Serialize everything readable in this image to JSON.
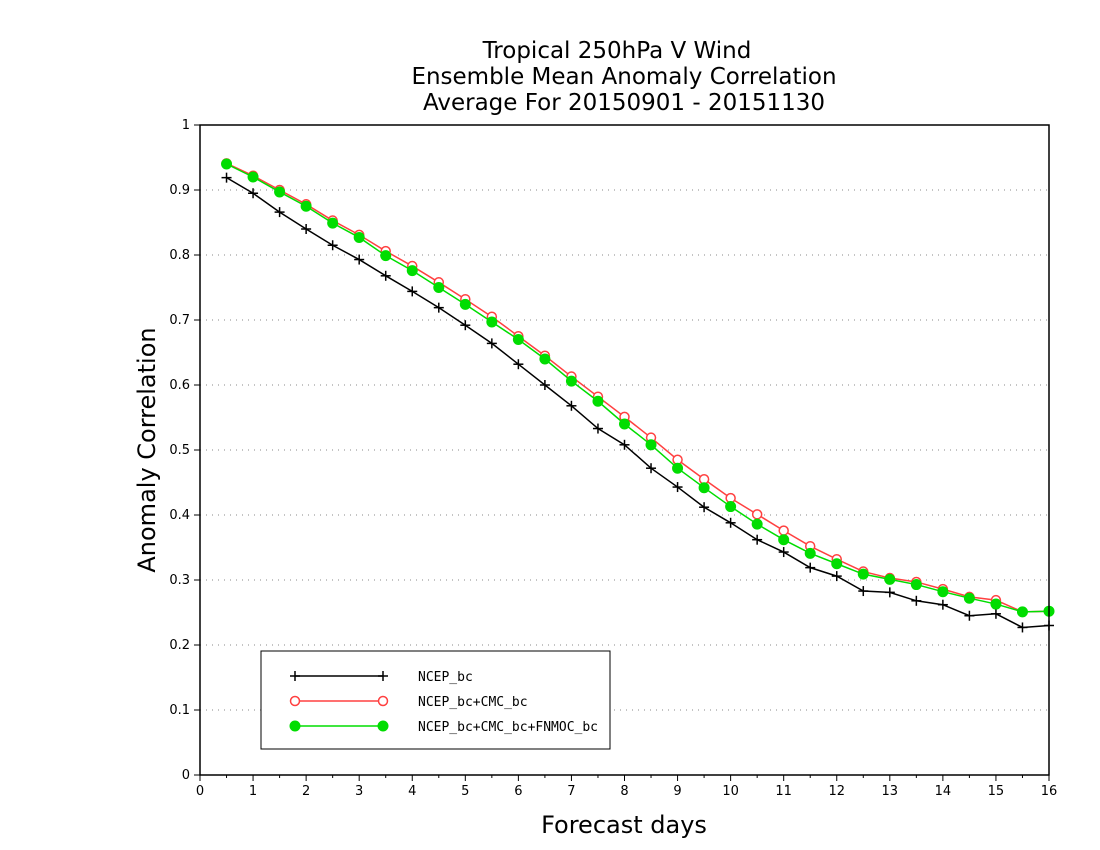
{
  "chart_data": {
    "type": "line",
    "title": [
      "Tropical 250hPa V Wind",
      "Ensemble Mean Anomaly Correlation",
      "Average For 20150901 - 20151130"
    ],
    "xlabel": "Forecast days",
    "ylabel": "Anomaly Correlation",
    "xlim": [
      0,
      16
    ],
    "ylim": [
      0,
      1
    ],
    "xticks": [
      "0",
      "1",
      "2",
      "3",
      "4",
      "5",
      "6",
      "7",
      "8",
      "9",
      "10",
      "11",
      "12",
      "13",
      "14",
      "15",
      "16"
    ],
    "yticks": [
      "0",
      "0.1",
      "0.2",
      "0.3",
      "0.4",
      "0.5",
      "0.6",
      "0.7",
      "0.8",
      "0.9",
      "1"
    ],
    "grid": "horizontal dotted",
    "legend_position": "bottom-left",
    "x": [
      0.5,
      1,
      1.5,
      2,
      2.5,
      3,
      3.5,
      4,
      4.5,
      5,
      5.5,
      6,
      6.5,
      7,
      7.5,
      8,
      8.5,
      9,
      9.5,
      10,
      10.5,
      11,
      11.5,
      12,
      12.5,
      13,
      13.5,
      14,
      14.5,
      15,
      15.5,
      16
    ],
    "series": [
      {
        "name": "NCEP_bc",
        "color": "#000000",
        "marker": "plus",
        "values": [
          0.919,
          0.895,
          0.866,
          0.84,
          0.815,
          0.793,
          0.768,
          0.744,
          0.719,
          0.692,
          0.664,
          0.632,
          0.6,
          0.568,
          0.533,
          0.508,
          0.472,
          0.443,
          0.412,
          0.388,
          0.362,
          0.343,
          0.319,
          0.306,
          0.283,
          0.281,
          0.268,
          0.262,
          0.245,
          0.248,
          0.227,
          0.23
        ]
      },
      {
        "name": "NCEP_bc+CMC_bc",
        "color": "#ff4040",
        "marker": "open-circle",
        "values": [
          0.941,
          0.922,
          0.9,
          0.878,
          0.853,
          0.831,
          0.806,
          0.783,
          0.758,
          0.732,
          0.705,
          0.675,
          0.645,
          0.613,
          0.582,
          0.551,
          0.519,
          0.485,
          0.455,
          0.426,
          0.401,
          0.376,
          0.352,
          0.332,
          0.313,
          0.303,
          0.297,
          0.286,
          0.274,
          0.269,
          0.251,
          0.252
        ]
      },
      {
        "name": "NCEP_bc+CMC_bc+FNMOC_bc",
        "color": "#00dd00",
        "marker": "filled-circle",
        "values": [
          0.94,
          0.92,
          0.897,
          0.875,
          0.849,
          0.827,
          0.799,
          0.776,
          0.75,
          0.724,
          0.697,
          0.67,
          0.64,
          0.606,
          0.575,
          0.54,
          0.508,
          0.472,
          0.442,
          0.413,
          0.386,
          0.362,
          0.341,
          0.325,
          0.309,
          0.301,
          0.293,
          0.282,
          0.272,
          0.263,
          0.251,
          0.252
        ]
      }
    ]
  }
}
